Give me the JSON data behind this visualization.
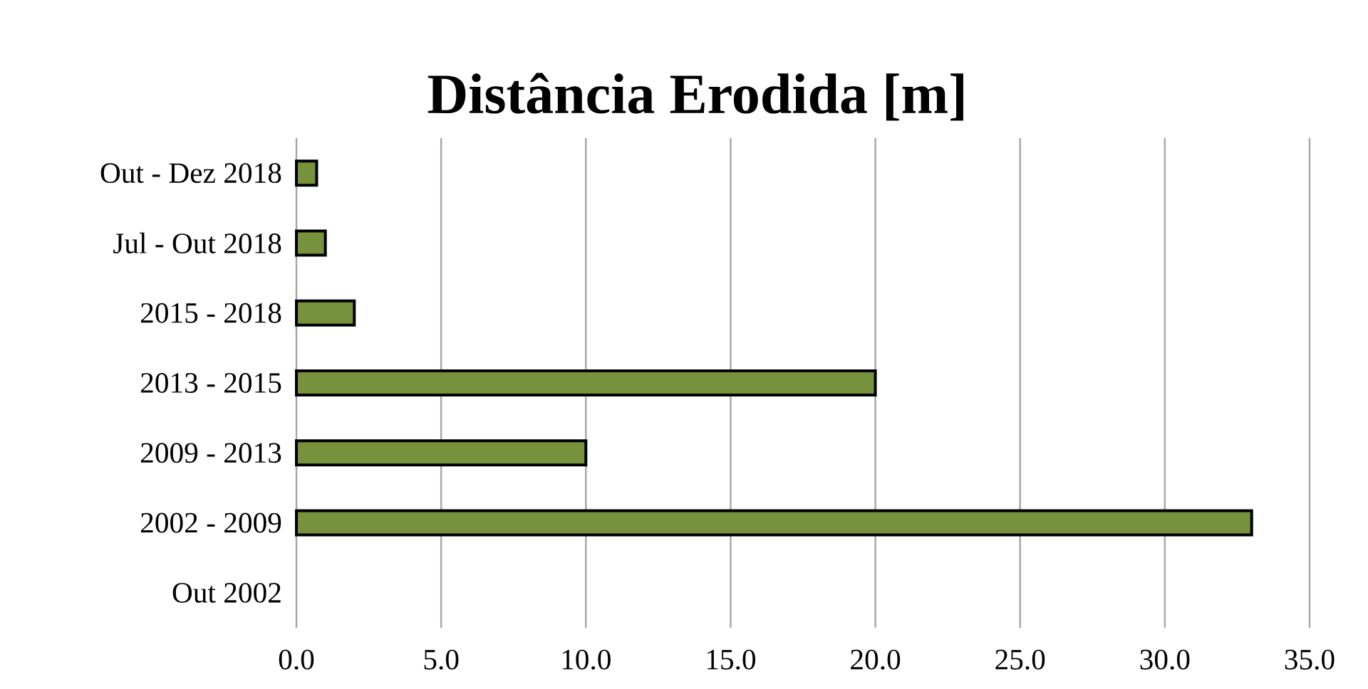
{
  "chart_data": {
    "type": "bar",
    "orientation": "horizontal",
    "title": "Distância Erodida [m]",
    "categories": [
      "Out - Dez 2018",
      "Jul - Out 2018",
      "2015 - 2018",
      "2013 - 2015",
      "2009 - 2013",
      "2002 - 2009",
      "Out 2002"
    ],
    "values": [
      0.7,
      1.0,
      2.0,
      20.0,
      10.0,
      33.0,
      null
    ],
    "color": "#76923c",
    "xlim": [
      0,
      35
    ],
    "xticks": [
      {
        "value": 0,
        "label": "0.0"
      },
      {
        "value": 5,
        "label": "5.0"
      },
      {
        "value": 10,
        "label": "10.0"
      },
      {
        "value": 15,
        "label": "15.0"
      },
      {
        "value": 20,
        "label": "20.0"
      },
      {
        "value": 25,
        "label": "25.0"
      },
      {
        "value": 30,
        "label": "30.0"
      },
      {
        "value": 35,
        "label": "35.0"
      }
    ],
    "grid": "x"
  }
}
